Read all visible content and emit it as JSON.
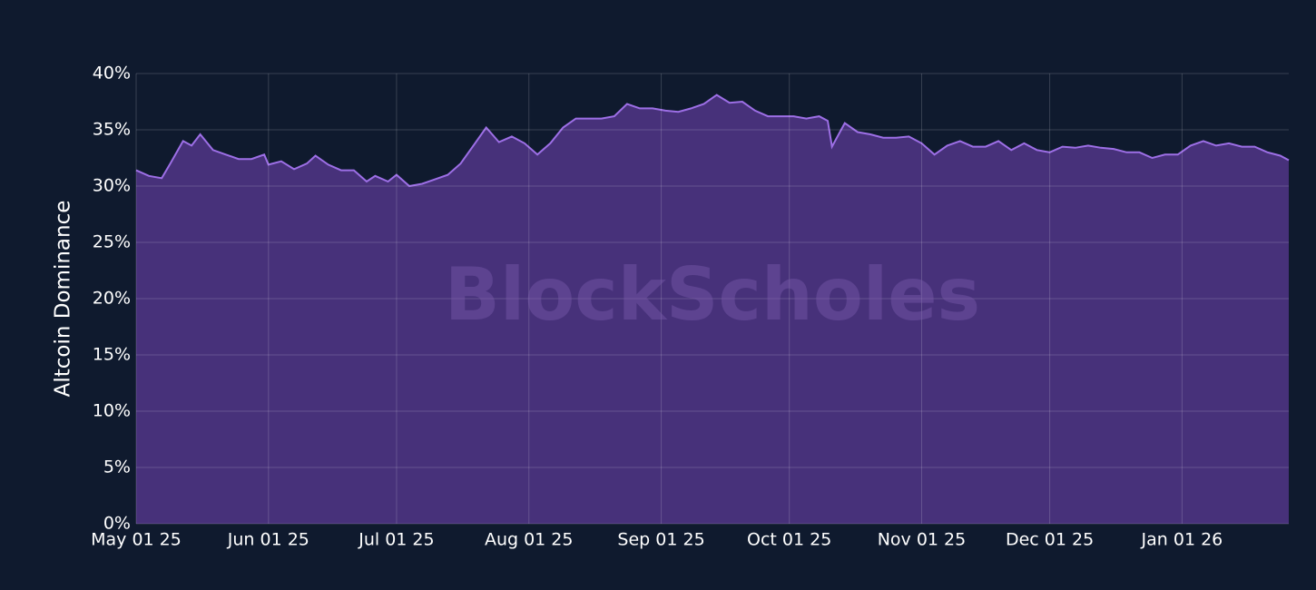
{
  "chart_data": {
    "type": "area",
    "y_label": "Altcoin Dominance",
    "watermark": "BlockScholes",
    "x": [
      "2025-05-01",
      "2025-05-04",
      "2025-05-07",
      "2025-05-09",
      "2025-05-12",
      "2025-05-14",
      "2025-05-16",
      "2025-05-19",
      "2025-05-22",
      "2025-05-25",
      "2025-05-28",
      "2025-05-31",
      "2025-06-01",
      "2025-06-04",
      "2025-06-07",
      "2025-06-10",
      "2025-06-12",
      "2025-06-15",
      "2025-06-18",
      "2025-06-21",
      "2025-06-24",
      "2025-06-26",
      "2025-06-29",
      "2025-07-01",
      "2025-07-04",
      "2025-07-07",
      "2025-07-10",
      "2025-07-13",
      "2025-07-16",
      "2025-07-19",
      "2025-07-22",
      "2025-07-25",
      "2025-07-28",
      "2025-07-31",
      "2025-08-03",
      "2025-08-06",
      "2025-08-09",
      "2025-08-12",
      "2025-08-15",
      "2025-08-18",
      "2025-08-21",
      "2025-08-24",
      "2025-08-27",
      "2025-08-30",
      "2025-09-02",
      "2025-09-05",
      "2025-09-08",
      "2025-09-11",
      "2025-09-14",
      "2025-09-17",
      "2025-09-20",
      "2025-09-23",
      "2025-09-26",
      "2025-09-29",
      "2025-10-02",
      "2025-10-05",
      "2025-10-08",
      "2025-10-10",
      "2025-10-11",
      "2025-10-14",
      "2025-10-17",
      "2025-10-20",
      "2025-10-23",
      "2025-10-26",
      "2025-10-29",
      "2025-11-01",
      "2025-11-04",
      "2025-11-07",
      "2025-11-10",
      "2025-11-13",
      "2025-11-16",
      "2025-11-19",
      "2025-11-22",
      "2025-11-25",
      "2025-11-28",
      "2025-12-01",
      "2025-12-04",
      "2025-12-07",
      "2025-12-10",
      "2025-12-13",
      "2025-12-16",
      "2025-12-19",
      "2025-12-22",
      "2025-12-25",
      "2025-12-28",
      "2025-12-31",
      "2026-01-03",
      "2026-01-06",
      "2026-01-09",
      "2026-01-12",
      "2026-01-15",
      "2026-01-18",
      "2026-01-21",
      "2026-01-24",
      "2026-01-26"
    ],
    "series": [
      {
        "name": "Altcoin Dominance",
        "color": "#9d6fe6",
        "fill": "#47317a",
        "values": [
          31.4,
          30.9,
          30.7,
          32.0,
          34.0,
          33.6,
          34.6,
          33.2,
          32.8,
          32.4,
          32.4,
          32.8,
          31.9,
          32.2,
          31.5,
          32.0,
          32.7,
          31.9,
          31.4,
          31.4,
          30.4,
          30.9,
          30.4,
          31.0,
          30.0,
          30.2,
          30.6,
          31.0,
          32.0,
          33.6,
          35.2,
          33.9,
          34.4,
          33.8,
          32.8,
          33.8,
          35.2,
          36.0,
          36.0,
          36.0,
          36.2,
          37.3,
          36.9,
          36.9,
          36.7,
          36.6,
          36.9,
          37.3,
          38.1,
          37.4,
          37.5,
          36.7,
          36.2,
          36.2,
          36.2,
          36.0,
          36.2,
          35.8,
          33.5,
          35.6,
          34.8,
          34.6,
          34.3,
          34.3,
          34.4,
          33.8,
          32.8,
          33.6,
          34.0,
          33.5,
          33.5,
          34.0,
          33.2,
          33.8,
          33.2,
          33.0,
          33.5,
          33.4,
          33.6,
          33.4,
          33.3,
          33.0,
          33.0,
          32.5,
          32.8,
          32.8,
          33.6,
          34.0,
          33.6,
          33.8,
          33.5,
          33.5,
          33.0,
          32.7,
          32.3
        ]
      }
    ],
    "xlim": [
      "2025-05-01",
      "2026-01-26"
    ],
    "xticks": [
      {
        "value": "2025-05-01",
        "label": "May 01 25"
      },
      {
        "value": "2025-06-01",
        "label": "Jun 01 25"
      },
      {
        "value": "2025-07-01",
        "label": "Jul 01 25"
      },
      {
        "value": "2025-08-01",
        "label": "Aug 01 25"
      },
      {
        "value": "2025-09-01",
        "label": "Sep 01 25"
      },
      {
        "value": "2025-10-01",
        "label": "Oct 01 25"
      },
      {
        "value": "2025-11-01",
        "label": "Nov 01 25"
      },
      {
        "value": "2025-12-01",
        "label": "Dec 01 25"
      },
      {
        "value": "2026-01-01",
        "label": "Jan 01 26"
      }
    ],
    "ylim": [
      0,
      40
    ],
    "yticks": [
      {
        "value": 0,
        "label": "0%"
      },
      {
        "value": 5,
        "label": "5%"
      },
      {
        "value": 10,
        "label": "10%"
      },
      {
        "value": 15,
        "label": "15%"
      },
      {
        "value": 20,
        "label": "20%"
      },
      {
        "value": 25,
        "label": "25%"
      },
      {
        "value": 30,
        "label": "30%"
      },
      {
        "value": 35,
        "label": "35%"
      },
      {
        "value": 40,
        "label": "40%"
      }
    ],
    "grid": true
  }
}
